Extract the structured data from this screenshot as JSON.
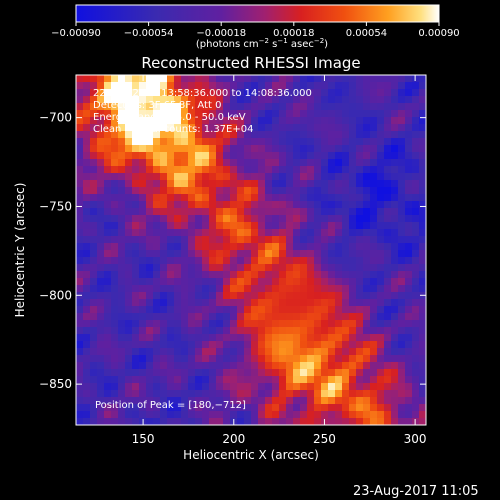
{
  "chart_data": {
    "type": "heatmap",
    "title": "Reconstructed RHESSI Image",
    "xlabel": "Heliocentric X (arcsec)",
    "ylabel": "Heliocentric Y (arcsec)",
    "xlim": [
      113,
      306
    ],
    "ylim": [
      -873,
      -676
    ],
    "x_ticks": [
      150,
      200,
      250,
      300
    ],
    "x_tick_labels": [
      "150",
      "200",
      "250",
      "300"
    ],
    "y_ticks": [
      -700,
      -750,
      -800,
      -850
    ],
    "y_tick_labels": [
      "−700",
      "−750",
      "−800",
      "−850"
    ],
    "colorbar": {
      "min": -0.0009,
      "max": 0.0009,
      "ticks": [
        -0.0009,
        -0.00054,
        -0.00018,
        0.00018,
        0.00054,
        0.0009
      ],
      "tick_labels": [
        "−0.00090",
        "−0.00054",
        "−0.00018",
        "0.00018",
        "0.00054",
        "0.00090"
      ],
      "label_plain": "(photons cm",
      "label_exp1": "−2",
      "label_mid": " s",
      "label_exp2": "−1",
      "label_end": " asec",
      "label_exp3": "−2",
      "label_close": ")"
    },
    "annotations": [
      "22‑Aug‑2017 13:58:36.000 to 14:08:36.000",
      "Detectors: 3F 6F 8F, Att 0",
      "Energy Range: 25.0 ‑ 50.0 keV",
      "Clean     Total counts: 1.37E+04"
    ],
    "peak_label": "Position of Peak = [180,−712]",
    "peak": [
      180,
      -712
    ],
    "grid": false
  },
  "footer": {
    "timestamp": "23-Aug-2017 11:05"
  }
}
